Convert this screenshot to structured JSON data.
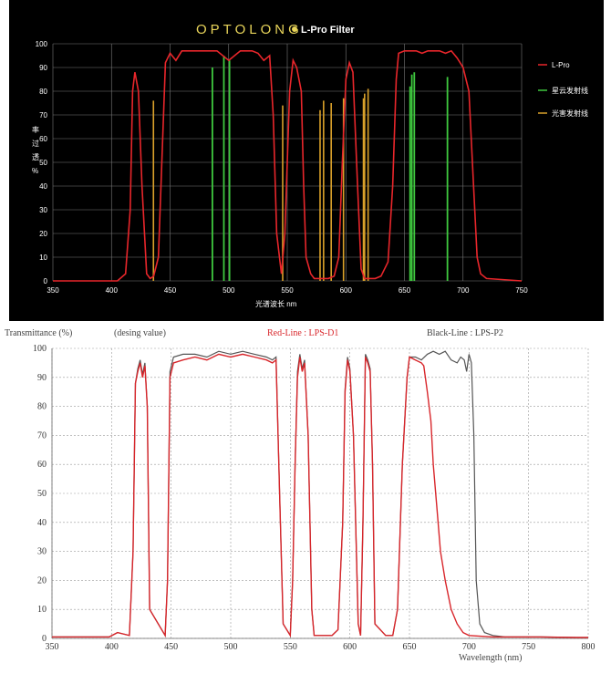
{
  "chart_data": [
    {
      "type": "line",
      "title_brand": "OPTOLONG",
      "title": "L-Pro Filter",
      "xlabel": "光谱波长 nm",
      "ylabel": "透过率%",
      "xlim": [
        350,
        750
      ],
      "ylim": [
        0,
        100
      ],
      "x_ticks": [
        350,
        400,
        450,
        500,
        550,
        600,
        650,
        700,
        750
      ],
      "y_ticks": [
        0,
        10,
        20,
        30,
        40,
        50,
        60,
        70,
        80,
        90,
        100
      ],
      "grid": true,
      "legend_position": "right",
      "colors": {
        "transmission": "#e8262b",
        "nebula": "#3fc93f",
        "pollution": "#d9a12a",
        "grid": "#7a7a7a",
        "background": "#000000"
      },
      "legend": [
        "L-Pro",
        "星云发射线",
        "光害发射线"
      ],
      "series": [
        {
          "name": "L-Pro",
          "x": [
            350,
            405,
            412,
            416,
            418,
            420,
            423,
            426,
            430,
            433,
            436,
            440,
            446,
            450,
            455,
            460,
            470,
            480,
            490,
            500,
            505,
            510,
            520,
            525,
            530,
            535,
            538,
            541,
            545,
            548,
            552,
            555,
            558,
            562,
            564,
            566,
            570,
            573,
            576,
            580,
            585,
            590,
            594,
            597,
            600,
            603,
            606,
            610,
            613,
            616,
            620,
            625,
            630,
            636,
            640,
            643,
            645,
            650,
            655,
            660,
            665,
            670,
            675,
            680,
            685,
            690,
            695,
            700,
            705,
            709,
            712,
            715,
            720,
            750
          ],
          "values": [
            0,
            0,
            3,
            30,
            80,
            88,
            80,
            40,
            3,
            1,
            2,
            10,
            92,
            96,
            93,
            97,
            97,
            97,
            97,
            93,
            95,
            97,
            97,
            96,
            93,
            95,
            70,
            20,
            3,
            20,
            80,
            93,
            90,
            80,
            40,
            10,
            3,
            1,
            1,
            1,
            1,
            2,
            10,
            50,
            85,
            92,
            88,
            40,
            5,
            1,
            1,
            1,
            2,
            8,
            40,
            85,
            96,
            97,
            97,
            97,
            96,
            97,
            97,
            97,
            96,
            97,
            94,
            90,
            80,
            40,
            10,
            3,
            1,
            0
          ]
        },
        {
          "name": "星云发射线",
          "line_wavelengths": [
            486.1,
            495.9,
            500.7,
            654.8,
            656.3,
            658.4,
            686.7
          ],
          "line_heights": [
            90,
            95,
            93,
            82,
            87,
            88,
            86
          ]
        },
        {
          "name": "光害发射线",
          "line_wavelengths": [
            435.8,
            546.1,
            578.0,
            581.0,
            587.5,
            598.0,
            615.0,
            616.0,
            619.0
          ],
          "line_heights": [
            76,
            74,
            72,
            76,
            75,
            77,
            77,
            79,
            81
          ]
        }
      ]
    },
    {
      "type": "line",
      "header_left": "Transmittance (%)",
      "header_note": "(desing value)",
      "legend_red": "Red-Line : LPS-D1",
      "legend_black": "Black-Line : LPS-P2",
      "xlabel": "Wavelength (nm)",
      "xlim": [
        350,
        800
      ],
      "ylim": [
        0,
        100
      ],
      "x_ticks": [
        350,
        400,
        450,
        500,
        550,
        600,
        650,
        700,
        750,
        800
      ],
      "y_ticks": [
        0,
        10,
        20,
        30,
        40,
        50,
        60,
        70,
        80,
        90,
        100
      ],
      "grid": true,
      "colors": {
        "red": "#d8262b",
        "black": "#555555",
        "grid": "#9a9a9a"
      },
      "series": [
        {
          "name": "LPS-D1",
          "x": [
            350,
            398,
            405,
            415,
            418,
            420,
            422,
            424,
            426,
            428,
            430,
            432,
            445,
            447,
            449,
            452,
            460,
            470,
            480,
            490,
            500,
            510,
            520,
            530,
            535,
            538,
            541,
            544,
            550,
            552,
            554,
            556,
            558,
            560,
            562,
            565,
            568,
            570,
            585,
            590,
            594,
            596,
            598,
            600,
            603,
            607,
            609,
            611,
            613,
            615,
            617,
            619,
            621,
            630,
            636,
            640,
            644,
            648,
            650,
            655,
            660,
            662,
            665,
            668,
            670,
            673,
            676,
            680,
            685,
            690,
            695,
            700,
            720,
            760,
            790,
            800
          ],
          "values": [
            0.5,
            0.5,
            2,
            1,
            30,
            88,
            92,
            95,
            90,
            94,
            80,
            10,
            1,
            20,
            90,
            95,
            96,
            97,
            96,
            98,
            97,
            98,
            97,
            96,
            95,
            96,
            50,
            5,
            1,
            20,
            60,
            90,
            97,
            92,
            95,
            70,
            10,
            1,
            1,
            3,
            40,
            85,
            96,
            92,
            70,
            5,
            1,
            40,
            97,
            95,
            92,
            60,
            5,
            1,
            1,
            10,
            60,
            90,
            97,
            96,
            95,
            94,
            85,
            75,
            60,
            45,
            30,
            20,
            10,
            5,
            2,
            1,
            0.5,
            0.5,
            0.3,
            0.3
          ]
        },
        {
          "name": "LPS-P2",
          "x": [
            350,
            398,
            405,
            415,
            418,
            420,
            422,
            424,
            426,
            428,
            430,
            432,
            445,
            447,
            449,
            452,
            460,
            470,
            480,
            490,
            500,
            510,
            520,
            530,
            535,
            538,
            541,
            544,
            550,
            552,
            554,
            556,
            558,
            560,
            562,
            565,
            568,
            570,
            585,
            590,
            594,
            596,
            598,
            600,
            603,
            607,
            609,
            611,
            613,
            615,
            617,
            619,
            621,
            630,
            636,
            640,
            644,
            648,
            650,
            655,
            660,
            665,
            670,
            675,
            680,
            685,
            690,
            693,
            696,
            698,
            700,
            702,
            704,
            706,
            709,
            713,
            720,
            730,
            760,
            790,
            800
          ],
          "values": [
            0.5,
            0.5,
            2,
            1,
            30,
            88,
            93,
            96,
            91,
            95,
            80,
            10,
            1,
            20,
            92,
            97,
            98,
            98,
            97,
            99,
            98,
            99,
            98,
            97,
            96,
            97,
            50,
            5,
            1,
            20,
            60,
            92,
            98,
            93,
            96,
            70,
            10,
            1,
            1,
            3,
            40,
            86,
            97,
            93,
            70,
            5,
            1,
            40,
            98,
            96,
            93,
            60,
            5,
            1,
            1,
            10,
            60,
            90,
            97,
            97,
            96,
            98,
            99,
            98,
            99,
            96,
            95,
            97,
            96,
            92,
            98,
            95,
            70,
            20,
            5,
            2,
            1,
            0.5,
            0.5,
            0.3,
            0.3
          ]
        }
      ]
    }
  ]
}
